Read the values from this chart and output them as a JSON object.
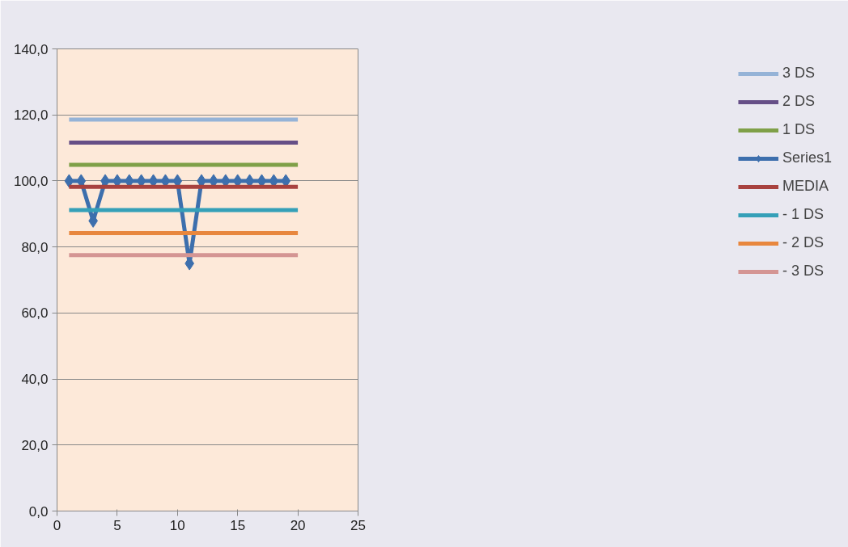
{
  "chart_data": {
    "type": "line",
    "x": [
      1,
      2,
      3,
      4,
      5,
      6,
      7,
      8,
      9,
      10,
      11,
      12,
      13,
      14,
      15,
      16,
      17,
      18,
      19,
      20
    ],
    "xlim": [
      0,
      25
    ],
    "xticks": [
      0,
      5,
      10,
      15,
      20,
      25
    ],
    "ylim": [
      0,
      140
    ],
    "yticks": [
      {
        "value": 0,
        "label": "0,0"
      },
      {
        "value": 20,
        "label": "20,0"
      },
      {
        "value": 40,
        "label": "40,0"
      },
      {
        "value": 60,
        "label": "60,0"
      },
      {
        "value": 80,
        "label": "80,0"
      },
      {
        "value": 100,
        "label": "100,0"
      },
      {
        "value": 120,
        "label": "120,0"
      },
      {
        "value": 140,
        "label": "140,0"
      }
    ],
    "grid": "y",
    "legend": "right",
    "marker": "none",
    "line_style": "solid",
    "series": [
      {
        "name": "3 DS",
        "color": "#95b3d7",
        "values": [
          118.6,
          118.6,
          118.6,
          118.6,
          118.6,
          118.6,
          118.6,
          118.6,
          118.6,
          118.6,
          118.6,
          118.6,
          118.6,
          118.6,
          118.6,
          118.6,
          118.6,
          118.6,
          118.6,
          118.6
        ]
      },
      {
        "name": "2 DS",
        "color": "#664f87",
        "values": [
          111.6,
          111.6,
          111.6,
          111.6,
          111.6,
          111.6,
          111.6,
          111.6,
          111.6,
          111.6,
          111.6,
          111.6,
          111.6,
          111.6,
          111.6,
          111.6,
          111.6,
          111.6,
          111.6,
          111.6
        ]
      },
      {
        "name": "1 DS",
        "color": "#7fa048",
        "values": [
          104.9,
          104.9,
          104.9,
          104.9,
          104.9,
          104.9,
          104.9,
          104.9,
          104.9,
          104.9,
          104.9,
          104.9,
          104.9,
          104.9,
          104.9,
          104.9,
          104.9,
          104.9,
          104.9,
          104.9
        ]
      },
      {
        "name": "Series1",
        "color": "#3d6fad",
        "marker": "diamond",
        "values": [
          100,
          100,
          87.9,
          100,
          100,
          100,
          100,
          100,
          100,
          100,
          75,
          100,
          100,
          100,
          100,
          100,
          100,
          100,
          100,
          null
        ]
      },
      {
        "name": "MEDIA",
        "color": "#a8423f",
        "values": [
          98.2,
          98.2,
          98.2,
          98.2,
          98.2,
          98.2,
          98.2,
          98.2,
          98.2,
          98.2,
          98.2,
          98.2,
          98.2,
          98.2,
          98.2,
          98.2,
          98.2,
          98.2,
          98.2,
          98.2
        ]
      },
      {
        "name": "- 1 DS",
        "color": "#35a0b8",
        "values": [
          91.2,
          91.2,
          91.2,
          91.2,
          91.2,
          91.2,
          91.2,
          91.2,
          91.2,
          91.2,
          91.2,
          91.2,
          91.2,
          91.2,
          91.2,
          91.2,
          91.2,
          91.2,
          91.2,
          91.2
        ]
      },
      {
        "name": "- 2 DS",
        "color": "#e8873e",
        "values": [
          84.2,
          84.2,
          84.2,
          84.2,
          84.2,
          84.2,
          84.2,
          84.2,
          84.2,
          84.2,
          84.2,
          84.2,
          84.2,
          84.2,
          84.2,
          84.2,
          84.2,
          84.2,
          84.2,
          84.2
        ]
      },
      {
        "name": "- 3 DS",
        "color": "#d49593",
        "values": [
          77.5,
          77.5,
          77.5,
          77.5,
          77.5,
          77.5,
          77.5,
          77.5,
          77.5,
          77.5,
          77.5,
          77.5,
          77.5,
          77.5,
          77.5,
          77.5,
          77.5,
          77.5,
          77.5,
          77.5
        ]
      }
    ]
  }
}
